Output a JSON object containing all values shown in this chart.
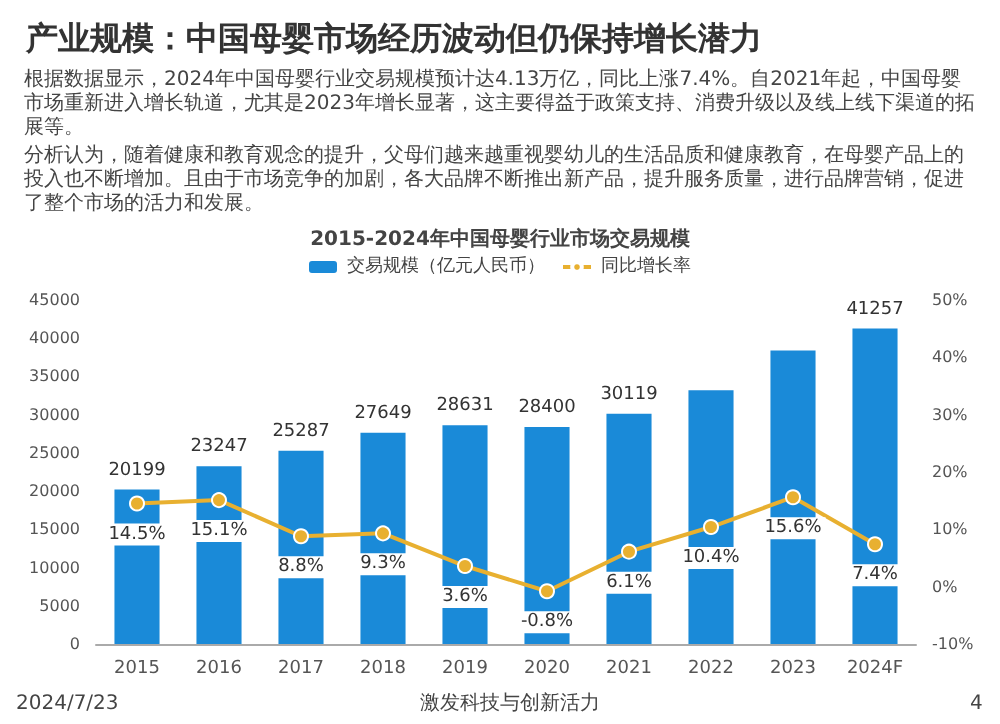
{
  "chart_data": {
    "type": "bar",
    "title": "产业规模：中国母婴市场经历波动但仍保持增长潜力",
    "subtitle": "2015-2024年中国母婴行业市场交易规模",
    "annotations": [
      "根据数据显示，2024年中国母婴行业交易规模预计达4.13万亿，同比上涨7.4%。自2021年起，中国母婴市场重新进入增长轨道，尤其是2023年增长显著，这主要得益于政策支持、消费升级以及线上线下渠道的拓展等。",
      "分析认为，随着健康和教育观念的提升，父母们越来越重视婴幼儿的生活品质和健康教育，在母婴产品上的投入也不断增加。且由于市场竞争的加剧，各大品牌不断推出新产品，提升服务质量，进行品牌营销，促进了整个市场的活力和发展。",
      "2024/7/23",
      "激发科技与创新活力",
      "4"
    ],
    "categories": [
      "2015",
      "2016",
      "2017",
      "2018",
      "2019",
      "2020",
      "2021",
      "2022",
      "2023",
      "2024F"
    ],
    "series": [
      {
        "name": "交易规模（亿元人民币）",
        "color": "#1a8ad8",
        "values": [
          20199,
          23247,
          25287,
          27649,
          28631,
          28400,
          30119,
          33200,
          38400,
          41257
        ],
        "value_labels": [
          "20199",
          "23247",
          "25287",
          "27649",
          "28631",
          "28400",
          "30119",
          null,
          null,
          "41257"
        ]
      },
      {
        "name": "同比增长率",
        "type": "line",
        "axis": "y2",
        "color": "#e8b030",
        "marker": "circle",
        "values": [
          14.5,
          15.1,
          8.8,
          9.3,
          3.6,
          -0.8,
          6.1,
          10.4,
          15.6,
          7.4
        ],
        "value_labels": [
          "14.5%",
          "15.1%",
          "8.8%",
          "9.3%",
          "3.6%",
          "-0.8%",
          "6.1%",
          "10.4%",
          "15.6%",
          "7.4%"
        ]
      }
    ],
    "ylim": [
      0,
      45000
    ],
    "yticks": [
      0,
      5000,
      10000,
      15000,
      20000,
      25000,
      30000,
      35000,
      40000,
      45000
    ],
    "y2lim": [
      -10,
      50
    ],
    "y2ticks": [
      {
        "value": -10,
        "label": "-10%"
      },
      {
        "value": 0,
        "label": "0%"
      },
      {
        "value": 10,
        "label": "10%"
      },
      {
        "value": 20,
        "label": "20%"
      },
      {
        "value": 30,
        "label": "30%"
      },
      {
        "value": 40,
        "label": "40%"
      },
      {
        "value": 50,
        "label": "50%"
      }
    ],
    "legend": "top"
  }
}
